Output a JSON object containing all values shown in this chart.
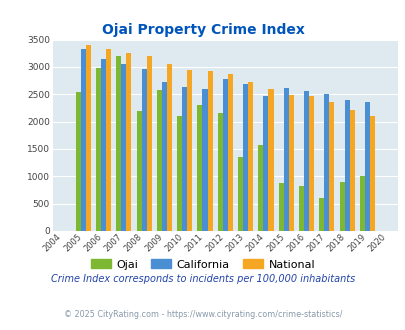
{
  "title": "Ojai Property Crime Index",
  "years": [
    2004,
    2005,
    2006,
    2007,
    2008,
    2009,
    2010,
    2011,
    2012,
    2013,
    2014,
    2015,
    2016,
    2017,
    2018,
    2019,
    2020
  ],
  "ojai": [
    0,
    2550,
    2980,
    3200,
    2200,
    2580,
    2100,
    2300,
    2150,
    1350,
    1580,
    880,
    820,
    600,
    900,
    1000,
    0
  ],
  "california": [
    0,
    3330,
    3150,
    3050,
    2960,
    2720,
    2630,
    2600,
    2780,
    2680,
    2460,
    2620,
    2560,
    2510,
    2400,
    2350,
    0
  ],
  "national": [
    0,
    3410,
    3330,
    3260,
    3200,
    3050,
    2950,
    2920,
    2870,
    2730,
    2590,
    2490,
    2460,
    2360,
    2210,
    2110,
    0
  ],
  "ojai_color": "#7db832",
  "california_color": "#4a8fd4",
  "national_color": "#f5a623",
  "background_color": "#deeaf0",
  "title_color": "#0055bb",
  "ylim": [
    0,
    3500
  ],
  "yticks": [
    0,
    500,
    1000,
    1500,
    2000,
    2500,
    3000,
    3500
  ],
  "bar_width": 0.25,
  "subtitle": "Crime Index corresponds to incidents per 100,000 inhabitants",
  "footer": "© 2025 CityRating.com - https://www.cityrating.com/crime-statistics/",
  "subtitle_color": "#2244aa",
  "footer_color": "#8899aa"
}
